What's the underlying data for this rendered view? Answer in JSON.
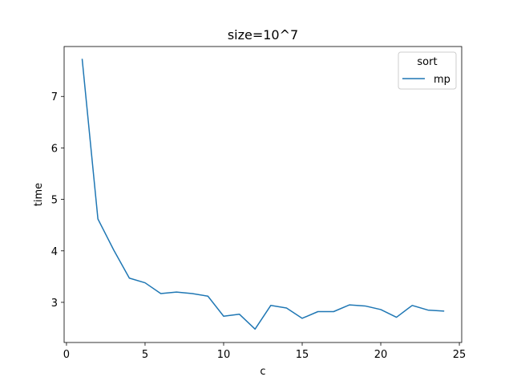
{
  "chart_data": {
    "type": "line",
    "title": "size=10^7",
    "xlabel": "c",
    "ylabel": "time",
    "xlim": [
      -0.15,
      25.15
    ],
    "ylim": [
      2.22,
      7.97
    ],
    "xticks": [
      0,
      5,
      10,
      15,
      20,
      25
    ],
    "yticks": [
      3,
      4,
      5,
      6,
      7
    ],
    "grid": false,
    "legend": {
      "title": "sort",
      "position": "top-right"
    },
    "series": [
      {
        "name": "mp",
        "color": "#1f77b4",
        "x": [
          1,
          2,
          3,
          4,
          5,
          6,
          7,
          8,
          9,
          10,
          11,
          12,
          13,
          14,
          15,
          16,
          17,
          18,
          19,
          20,
          21,
          22,
          23,
          24
        ],
        "y": [
          7.72,
          4.62,
          4.02,
          3.47,
          3.38,
          3.17,
          3.2,
          3.17,
          3.12,
          2.73,
          2.77,
          2.48,
          2.94,
          2.89,
          2.69,
          2.82,
          2.82,
          2.95,
          2.93,
          2.86,
          2.71,
          2.94,
          2.85,
          2.83
        ]
      }
    ]
  }
}
